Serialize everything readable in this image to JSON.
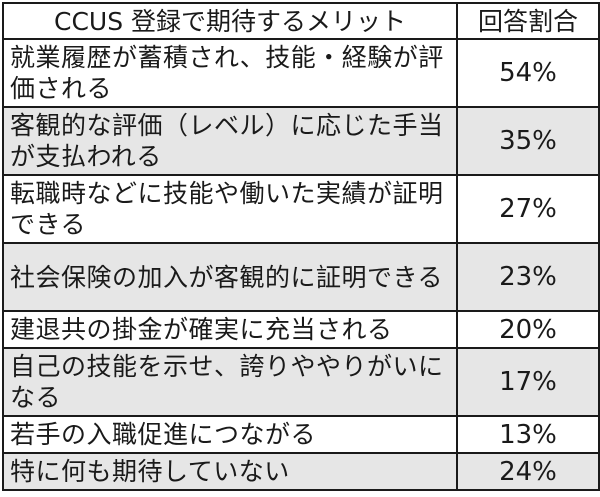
{
  "chart_data": {
    "type": "table",
    "columns": [
      "CCUS 登録で期待するメリット",
      "回答割合"
    ],
    "rows": [
      {
        "item": "就業履歴が蓄積され、技能・経験が評価される",
        "value": "54%"
      },
      {
        "item": "客観的な評価（レベル）に応じた手当が支払われる",
        "value": "35%"
      },
      {
        "item": "転職時などに技能や働いた実績が証明できる",
        "value": "27%"
      },
      {
        "item": "社会保険の加入が客観的に証明できる",
        "value": "23%"
      },
      {
        "item": "建退共の掛金が確実に充当される",
        "value": "20%"
      },
      {
        "item": "自己の技能を示せ、誇りややりがいになる",
        "value": "17%"
      },
      {
        "item": "若手の入職促進につながる",
        "value": "13%"
      },
      {
        "item": "特に何も期待していない",
        "value": "24%"
      }
    ],
    "colors": {
      "border": "#1a1a1a",
      "shade": "#e6e6e6",
      "background": "#ffffff"
    }
  }
}
